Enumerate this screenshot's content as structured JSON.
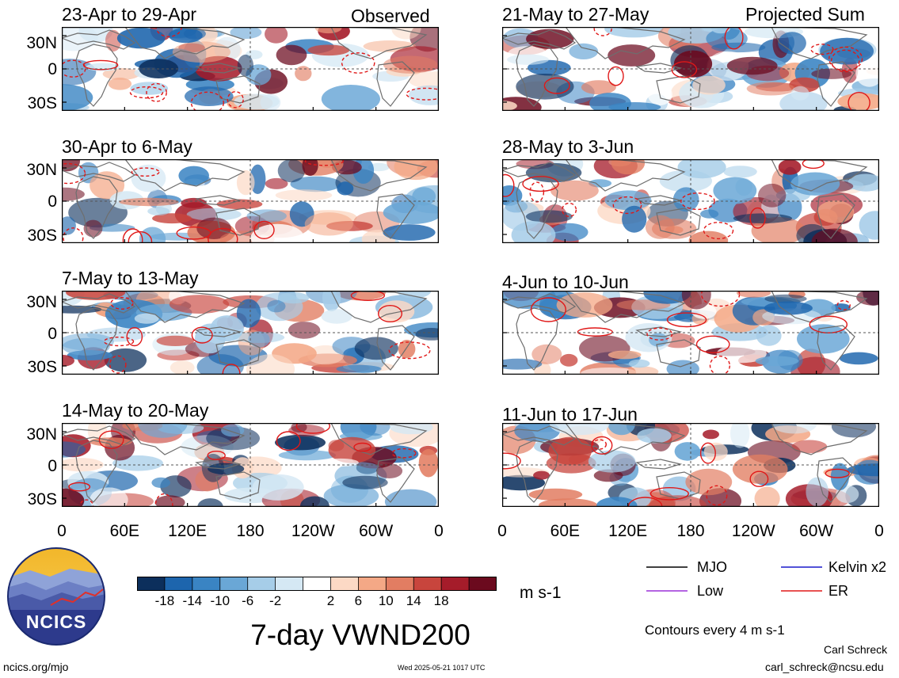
{
  "columns": {
    "left_label": "Observed",
    "right_label": "Projected Sum"
  },
  "panels": [
    {
      "title": "23-Apr to 29-Apr"
    },
    {
      "title": "30-Apr to 6-May"
    },
    {
      "title": "7-May to 13-May"
    },
    {
      "title": "14-May to 20-May"
    },
    {
      "title": "21-May to 27-May"
    },
    {
      "title": "28-May to 3-Jun"
    },
    {
      "title": "4-Jun to 10-Jun"
    },
    {
      "title": "11-Jun to 17-Jun"
    }
  ],
  "axes": {
    "lat_ticks": [
      "30N",
      "0",
      "30S"
    ],
    "lon_ticks": [
      "0",
      "60E",
      "120E",
      "180",
      "120W",
      "60W",
      "0"
    ]
  },
  "colorbar": {
    "labels": [
      "-18",
      "-14",
      "-10",
      "-6",
      "-2",
      "2",
      "6",
      "10",
      "14",
      "18"
    ],
    "colors": [
      "#0c2f5c",
      "#1d65ad",
      "#3a84c3",
      "#6aa7d6",
      "#a6cde8",
      "#d5e8f4",
      "#ffffff",
      "#fcd9c5",
      "#f4a886",
      "#e27d62",
      "#c8453d",
      "#a51c2a",
      "#6b0a1e"
    ],
    "units": "m s-1"
  },
  "legend": {
    "items": [
      {
        "label": "MJO",
        "color": "#000000"
      },
      {
        "label": "Kelvin x2",
        "color": "#1a1acc"
      },
      {
        "label": "Low",
        "color": "#9b30d9"
      },
      {
        "label": "ER",
        "color": "#e01818"
      }
    ],
    "contours_note": "Contours every 4 m s-1"
  },
  "main_title": "7-day VWND200",
  "logo": {
    "text": "NCICS"
  },
  "footer": {
    "url": "ncics.org/mjo",
    "timestamp": "Wed 2025-05-21 1017 UTC",
    "author": "Carl Schreck",
    "email": "carl_schreck@ncsu.edu"
  }
}
